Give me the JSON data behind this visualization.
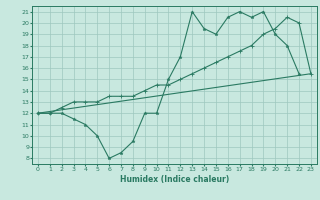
{
  "xlabel": "Humidex (Indice chaleur)",
  "xlim": [
    -0.5,
    23.5
  ],
  "ylim": [
    7.5,
    21.5
  ],
  "xticks": [
    0,
    1,
    2,
    3,
    4,
    5,
    6,
    7,
    8,
    9,
    10,
    11,
    12,
    13,
    14,
    15,
    16,
    17,
    18,
    19,
    20,
    21,
    22,
    23
  ],
  "yticks": [
    8,
    9,
    10,
    11,
    12,
    13,
    14,
    15,
    16,
    17,
    18,
    19,
    20,
    21
  ],
  "background_color": "#c8e8df",
  "grid_color": "#9ec8be",
  "line_color": "#2a7a62",
  "line1_x": [
    0,
    1,
    2,
    3,
    4,
    5,
    6,
    7,
    8,
    9,
    10,
    11,
    12,
    13,
    14,
    15,
    16,
    17,
    18,
    19,
    20,
    21,
    22
  ],
  "line1_y": [
    12,
    12,
    12,
    11.5,
    11,
    10,
    8,
    8.5,
    9.5,
    12,
    12,
    15,
    17,
    21,
    19.5,
    19,
    20.5,
    21,
    20.5,
    21,
    19,
    18,
    15.5
  ],
  "line2_x": [
    0,
    1,
    2,
    3,
    4,
    5,
    6,
    7,
    8,
    9,
    10,
    11,
    12,
    13,
    14,
    15,
    16,
    17,
    18,
    19,
    20,
    21,
    22,
    23
  ],
  "line2_y": [
    12,
    12,
    12.5,
    13,
    13,
    13,
    13.5,
    13.5,
    13.5,
    14,
    14.5,
    14.5,
    15,
    15.5,
    16,
    16.5,
    17,
    17.5,
    18,
    19,
    19.5,
    20.5,
    20,
    15.5
  ],
  "line3_x": [
    0,
    23
  ],
  "line3_y": [
    12,
    15.5
  ]
}
